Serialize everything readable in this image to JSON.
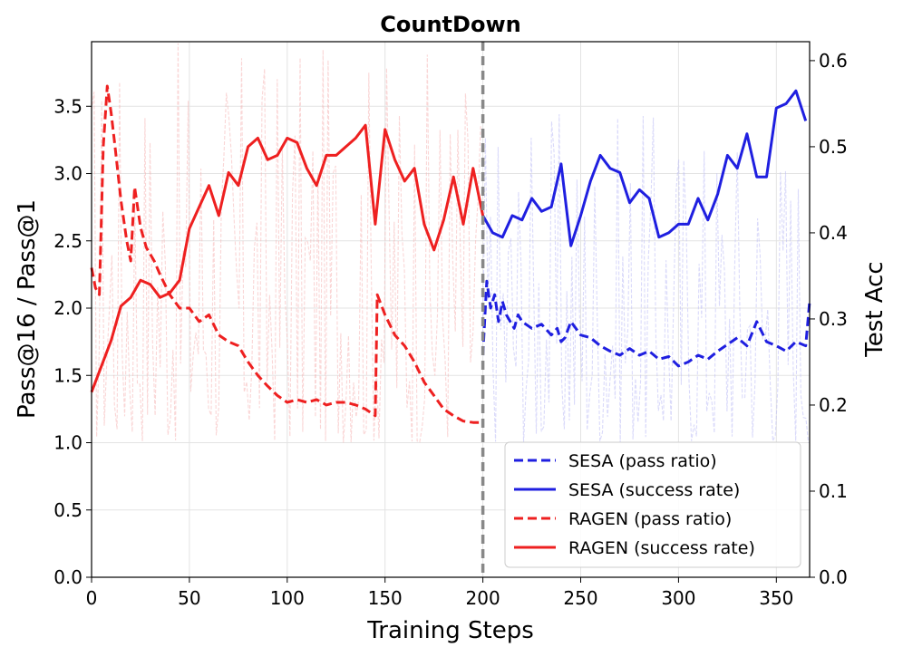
{
  "chart_data": {
    "type": "line",
    "title": "CountDown",
    "xlabel": "Training Steps",
    "ylabel_left": "Pass@16 / Pass@1",
    "ylabel_right": "Test Acc",
    "xlim": [
      0,
      367
    ],
    "ylim_left": [
      0,
      3.98
    ],
    "ylim_right": [
      0,
      0.622
    ],
    "xticks": [
      "0",
      "50",
      "100",
      "150",
      "200",
      "250",
      "300",
      "350"
    ],
    "yticks_left": [
      "0.0",
      "0.5",
      "1.0",
      "1.5",
      "2.0",
      "2.5",
      "3.0",
      "3.5"
    ],
    "yticks_right": [
      "0.0",
      "0.1",
      "0.2",
      "0.3",
      "0.4",
      "0.5",
      "0.6"
    ],
    "grid": true,
    "divider_x": 200,
    "legend_position": "lower-right",
    "series": [
      {
        "name": "SESA (pass ratio)",
        "axis": "left",
        "style": "dashed",
        "color": "#1f1fe0",
        "x": [
          200,
          202,
          204,
          206,
          208,
          210,
          212,
          214,
          216,
          218,
          220,
          225,
          230,
          235,
          238,
          240,
          242,
          245,
          250,
          255,
          260,
          265,
          270,
          275,
          280,
          285,
          290,
          295,
          300,
          305,
          310,
          315,
          320,
          325,
          330,
          335,
          340,
          345,
          350,
          355,
          360,
          365,
          367
        ],
        "y": [
          1.65,
          2.2,
          2.0,
          2.1,
          1.9,
          2.05,
          1.95,
          1.9,
          1.85,
          1.95,
          1.9,
          1.85,
          1.88,
          1.8,
          1.85,
          1.75,
          1.78,
          1.9,
          1.8,
          1.78,
          1.72,
          1.68,
          1.65,
          1.7,
          1.65,
          1.68,
          1.62,
          1.64,
          1.57,
          1.6,
          1.65,
          1.62,
          1.68,
          1.73,
          1.78,
          1.72,
          1.9,
          1.75,
          1.72,
          1.68,
          1.75,
          1.72,
          2.05
        ]
      },
      {
        "name": "SESA (success rate)",
        "axis": "right",
        "style": "solid",
        "color": "#1f1fe0",
        "x": [
          200,
          205,
          210,
          215,
          220,
          225,
          230,
          235,
          240,
          245,
          250,
          255,
          260,
          265,
          270,
          275,
          280,
          285,
          290,
          295,
          300,
          305,
          310,
          315,
          320,
          325,
          330,
          335,
          340,
          345,
          350,
          355,
          360,
          365
        ],
        "y": [
          0.42,
          0.4,
          0.395,
          0.42,
          0.415,
          0.44,
          0.425,
          0.43,
          0.48,
          0.385,
          0.42,
          0.46,
          0.49,
          0.475,
          0.47,
          0.435,
          0.45,
          0.44,
          0.395,
          0.4,
          0.41,
          0.41,
          0.44,
          0.415,
          0.445,
          0.49,
          0.475,
          0.515,
          0.465,
          0.465,
          0.545,
          0.55,
          0.565,
          0.53
        ]
      },
      {
        "name": "RAGEN (pass ratio)",
        "axis": "left",
        "style": "dashed",
        "color": "#ee2020",
        "x": [
          0,
          2,
          4,
          6,
          8,
          10,
          12,
          15,
          18,
          20,
          22,
          25,
          28,
          32,
          35,
          40,
          45,
          50,
          55,
          60,
          65,
          70,
          75,
          80,
          85,
          90,
          95,
          100,
          105,
          110,
          115,
          120,
          125,
          130,
          135,
          140,
          145,
          146,
          150,
          155,
          160,
          165,
          170,
          175,
          180,
          185,
          190,
          195,
          200
        ],
        "y": [
          2.3,
          2.15,
          2.1,
          3.2,
          3.65,
          3.45,
          3.2,
          2.8,
          2.5,
          2.35,
          2.9,
          2.6,
          2.45,
          2.35,
          2.25,
          2.1,
          2.0,
          2.0,
          1.9,
          1.95,
          1.8,
          1.75,
          1.72,
          1.6,
          1.5,
          1.42,
          1.35,
          1.3,
          1.32,
          1.3,
          1.32,
          1.28,
          1.3,
          1.3,
          1.28,
          1.25,
          1.2,
          2.1,
          1.95,
          1.8,
          1.72,
          1.6,
          1.45,
          1.35,
          1.25,
          1.2,
          1.16,
          1.15,
          1.15
        ]
      },
      {
        "name": "RAGEN (success rate)",
        "axis": "right",
        "style": "solid",
        "color": "#ee2020",
        "x": [
          0,
          5,
          10,
          15,
          20,
          25,
          30,
          35,
          40,
          45,
          50,
          55,
          60,
          65,
          70,
          75,
          80,
          85,
          90,
          95,
          100,
          105,
          110,
          115,
          120,
          125,
          130,
          135,
          140,
          145,
          150,
          155,
          160,
          165,
          170,
          175,
          180,
          185,
          190,
          195,
          200
        ],
        "y": [
          0.215,
          0.245,
          0.275,
          0.315,
          0.325,
          0.345,
          0.34,
          0.325,
          0.33,
          0.345,
          0.405,
          0.43,
          0.455,
          0.42,
          0.47,
          0.455,
          0.5,
          0.51,
          0.485,
          0.49,
          0.51,
          0.505,
          0.475,
          0.455,
          0.49,
          0.49,
          0.5,
          0.51,
          0.525,
          0.41,
          0.52,
          0.485,
          0.46,
          0.475,
          0.41,
          0.38,
          0.415,
          0.465,
          0.41,
          0.475,
          0.42
        ]
      }
    ],
    "background_noise": [
      {
        "color": "#f5b5b5",
        "x_range": [
          0,
          200
        ],
        "min": 1.0,
        "max": 3.98
      },
      {
        "color": "#bcbcf5",
        "x_range": [
          200,
          367
        ],
        "min": 1.0,
        "max": 3.5
      }
    ]
  }
}
